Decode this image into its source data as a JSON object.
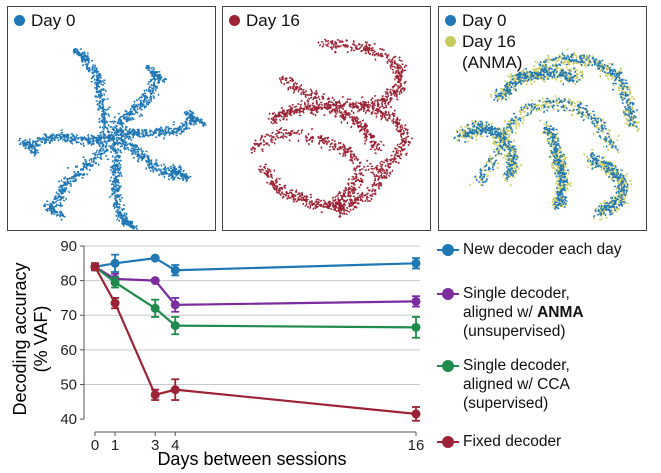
{
  "panels": [
    {
      "legend": [
        {
          "label": "Day 0",
          "color": "#1f77b4"
        }
      ]
    },
    {
      "legend": [
        {
          "label": "Day 16",
          "color": "#9b2335"
        }
      ]
    },
    {
      "legend": [
        {
          "label": "Day 0",
          "color": "#1f77b4"
        },
        {
          "label": "Day 16\n(ANMA)",
          "color": "#c8cc5e"
        }
      ]
    }
  ],
  "chart_data": {
    "type": "line",
    "xlabel": "Days between sessions",
    "ylabel": "Decoding accuracy\n(% VAF)",
    "xlim": [
      0,
      16
    ],
    "ylim": [
      38,
      90
    ],
    "xticks": [
      0,
      1,
      3,
      4,
      16
    ],
    "yticks": [
      40,
      50,
      60,
      70,
      80,
      90
    ],
    "grid": "horizontal",
    "legend_position": "right",
    "series": [
      {
        "name": "New decoder each day",
        "color": "#1f77b4",
        "x": [
          0,
          1,
          3,
          4,
          16
        ],
        "y": [
          84,
          85,
          86.5,
          83,
          85
        ],
        "err": [
          1,
          2.5,
          0.5,
          1.5,
          1.5
        ]
      },
      {
        "name": "Single decoder,\naligned w/ ANMA\n(unsupervised)",
        "color": "#7b2d9e",
        "x": [
          0,
          1,
          3,
          4,
          16
        ],
        "y": [
          84,
          80.5,
          80,
          73,
          74
        ],
        "err": [
          1,
          1.5,
          0.5,
          2,
          1.5
        ]
      },
      {
        "name": "Single decoder,\naligned w/ CCA\n(supervised)",
        "color": "#1e8a4c",
        "x": [
          0,
          1,
          3,
          4,
          16
        ],
        "y": [
          84,
          79.5,
          72,
          67,
          66.5
        ],
        "err": [
          1,
          1.5,
          2.5,
          2.5,
          3
        ]
      },
      {
        "name": "Fixed decoder",
        "color": "#9b2335",
        "x": [
          0,
          1,
          3,
          4,
          16
        ],
        "y": [
          84,
          73.5,
          47,
          48.5,
          41.5
        ],
        "err": [
          1,
          1.5,
          1.5,
          3,
          2
        ]
      }
    ]
  }
}
